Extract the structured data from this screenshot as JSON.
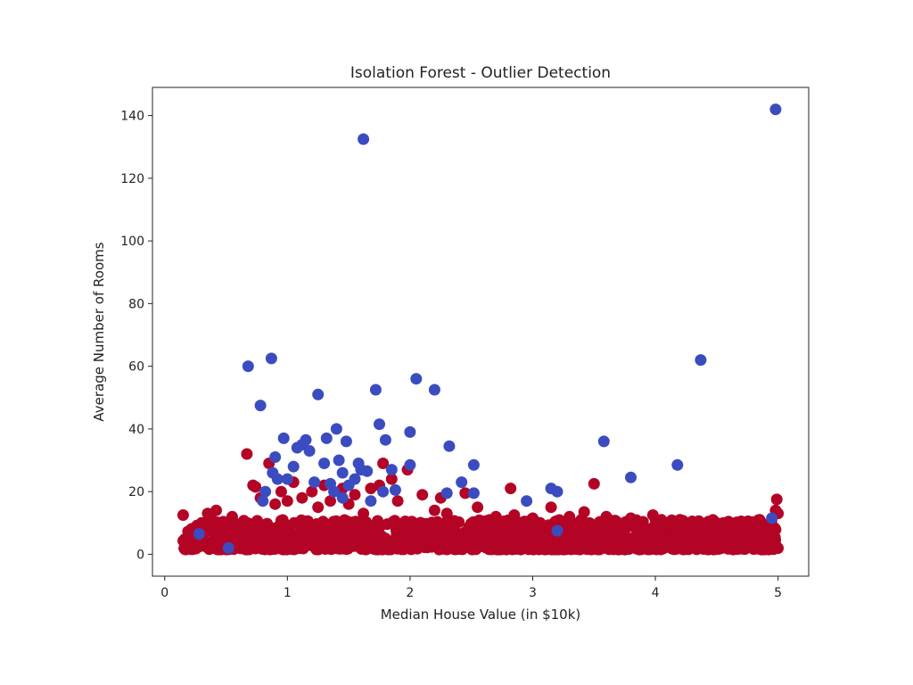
{
  "chart_data": {
    "type": "scatter",
    "title": "Isolation Forest - Outlier Detection",
    "xlabel": "Median House Value (in $10k)",
    "ylabel": "Average Number of Rooms",
    "xlim": [
      -0.1,
      5.25
    ],
    "ylim": [
      -7,
      149
    ],
    "xticks": [
      0,
      1,
      2,
      3,
      4,
      5
    ],
    "yticks": [
      0,
      20,
      40,
      60,
      80,
      100,
      120,
      140
    ],
    "grid": false,
    "colors": {
      "inlier": "#b40426",
      "outlier": "#3b4cc0"
    },
    "inlier_band": {
      "x_min": 0.15,
      "x_max": 5.0,
      "y_min": 1.5,
      "y_max": 11
    },
    "inlier_extra": [
      [
        0.15,
        12.5
      ],
      [
        0.27,
        4.5
      ],
      [
        0.3,
        10
      ],
      [
        0.35,
        13
      ],
      [
        0.42,
        14
      ],
      [
        0.55,
        12
      ],
      [
        0.67,
        32
      ],
      [
        0.72,
        22
      ],
      [
        0.74,
        21.5
      ],
      [
        0.78,
        18
      ],
      [
        0.85,
        29
      ],
      [
        0.9,
        16
      ],
      [
        0.95,
        20
      ],
      [
        1.0,
        17
      ],
      [
        1.05,
        23
      ],
      [
        1.12,
        18
      ],
      [
        1.2,
        20
      ],
      [
        1.25,
        15
      ],
      [
        1.3,
        22
      ],
      [
        1.35,
        17
      ],
      [
        1.45,
        21
      ],
      [
        1.5,
        16
      ],
      [
        1.55,
        19
      ],
      [
        1.62,
        13
      ],
      [
        1.68,
        21
      ],
      [
        1.75,
        22
      ],
      [
        1.78,
        29
      ],
      [
        1.85,
        24
      ],
      [
        1.9,
        17
      ],
      [
        1.98,
        27
      ],
      [
        2.1,
        19
      ],
      [
        2.2,
        14
      ],
      [
        2.25,
        18
      ],
      [
        2.3,
        13
      ],
      [
        2.45,
        19.5
      ],
      [
        2.55,
        15
      ],
      [
        2.7,
        12
      ],
      [
        2.82,
        21
      ],
      [
        2.85,
        12.5
      ],
      [
        3.0,
        11.5
      ],
      [
        3.15,
        15
      ],
      [
        3.3,
        12
      ],
      [
        3.42,
        13.5
      ],
      [
        3.5,
        22.5
      ],
      [
        3.6,
        12
      ],
      [
        3.8,
        11.5
      ],
      [
        3.98,
        12.5
      ],
      [
        4.05,
        11
      ],
      [
        4.2,
        11
      ],
      [
        4.3,
        10.5
      ],
      [
        4.5,
        10
      ],
      [
        4.7,
        10.5
      ],
      [
        4.85,
        11
      ],
      [
        4.98,
        14
      ],
      [
        4.99,
        17.5
      ],
      [
        5.0,
        13
      ]
    ],
    "outliers": [
      [
        0.28,
        6.5
      ],
      [
        0.52,
        2
      ],
      [
        0.68,
        60
      ],
      [
        0.78,
        47.5
      ],
      [
        0.8,
        17
      ],
      [
        0.82,
        20
      ],
      [
        0.87,
        62.5
      ],
      [
        0.88,
        26
      ],
      [
        0.9,
        31
      ],
      [
        0.92,
        24
      ],
      [
        0.97,
        37
      ],
      [
        1.0,
        24
      ],
      [
        1.05,
        28
      ],
      [
        1.08,
        34
      ],
      [
        1.12,
        35
      ],
      [
        1.15,
        36.5
      ],
      [
        1.18,
        33
      ],
      [
        1.22,
        23
      ],
      [
        1.25,
        51
      ],
      [
        1.3,
        29
      ],
      [
        1.32,
        37
      ],
      [
        1.35,
        22.5
      ],
      [
        1.38,
        20
      ],
      [
        1.4,
        40
      ],
      [
        1.42,
        30
      ],
      [
        1.45,
        26
      ],
      [
        1.45,
        18
      ],
      [
        1.48,
        36
      ],
      [
        1.5,
        22
      ],
      [
        1.55,
        24
      ],
      [
        1.58,
        29
      ],
      [
        1.6,
        27
      ],
      [
        1.62,
        132.5
      ],
      [
        1.65,
        26.5
      ],
      [
        1.68,
        17
      ],
      [
        1.72,
        52.5
      ],
      [
        1.75,
        41.5
      ],
      [
        1.78,
        20
      ],
      [
        1.8,
        36.5
      ],
      [
        1.85,
        27
      ],
      [
        1.88,
        20.5
      ],
      [
        2.0,
        39
      ],
      [
        2.0,
        28.5
      ],
      [
        2.05,
        56
      ],
      [
        2.2,
        52.5
      ],
      [
        2.3,
        19.5
      ],
      [
        2.32,
        34.5
      ],
      [
        2.42,
        23
      ],
      [
        2.52,
        28.5
      ],
      [
        2.52,
        19.5
      ],
      [
        2.95,
        17
      ],
      [
        3.15,
        21
      ],
      [
        3.2,
        20
      ],
      [
        3.2,
        7.5
      ],
      [
        3.58,
        36
      ],
      [
        3.8,
        24.5
      ],
      [
        4.18,
        28.5
      ],
      [
        4.37,
        62
      ],
      [
        4.98,
        142
      ],
      [
        4.95,
        11.5
      ]
    ]
  }
}
